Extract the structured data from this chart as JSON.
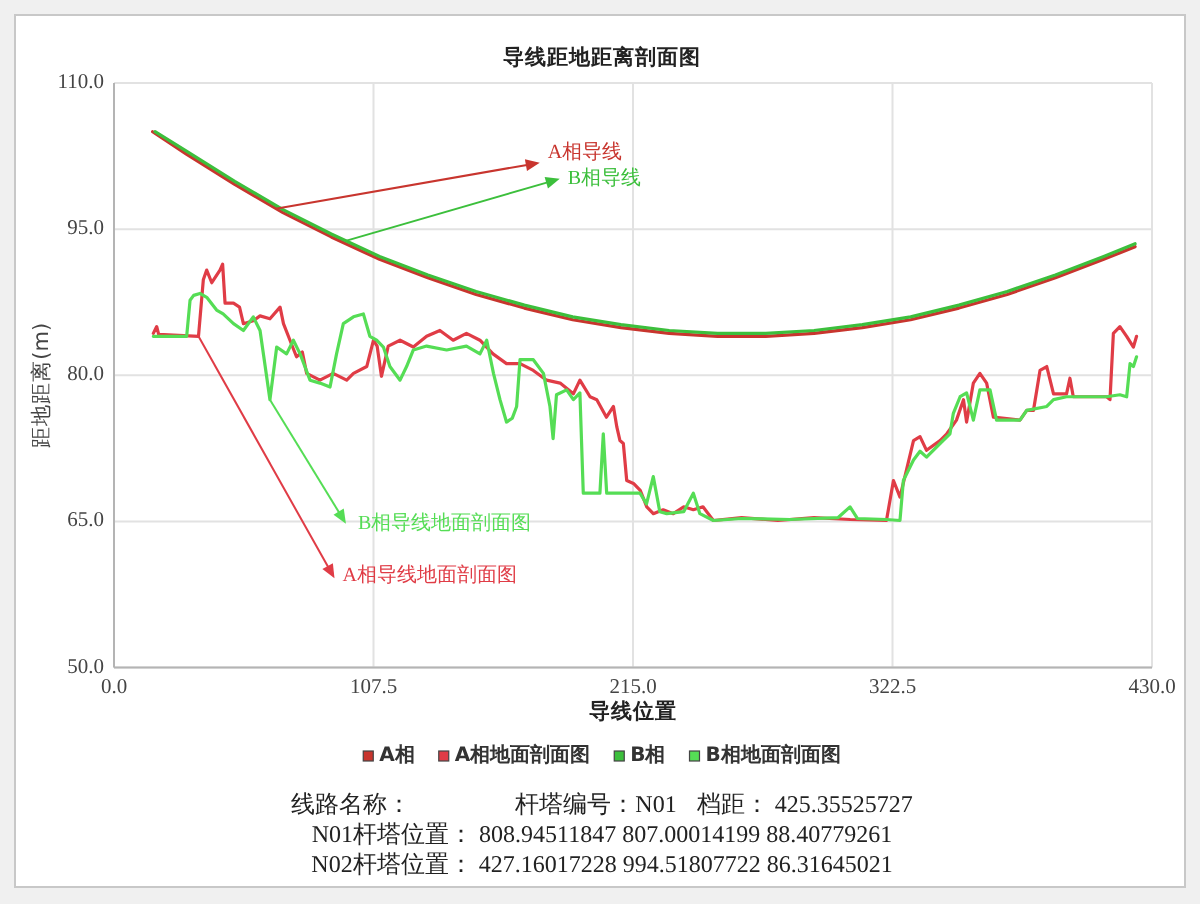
{
  "chart_data": {
    "type": "line",
    "title": "导线距地距离剖面图",
    "xlabel": "导线位置",
    "ylabel": "距地距离(m)",
    "xlim": [
      0,
      430
    ],
    "ylim": [
      50,
      110
    ],
    "xticks": [
      {
        "value": 0,
        "label": "0.0"
      },
      107.5,
      {
        "value": 215,
        "label": "215.0"
      },
      322.5,
      {
        "value": 430,
        "label": "430.0"
      }
    ],
    "yticks": [
      {
        "value": 50,
        "label": "50.0"
      },
      {
        "value": 65,
        "label": "65.0"
      },
      {
        "value": 80,
        "label": "80.0"
      },
      {
        "value": 95,
        "label": "95.0"
      },
      {
        "value": 110,
        "label": "110.0"
      }
    ],
    "grid": true,
    "legend": "bottom",
    "series": [
      {
        "name": "A相",
        "color": "#c8352e",
        "x": [
          16,
          30,
          50,
          70,
          90,
          110,
          130,
          150,
          170,
          190,
          210,
          230,
          250,
          270,
          290,
          310,
          330,
          350,
          370,
          390,
          410,
          423
        ],
        "values": [
          105.0,
          102.7,
          99.6,
          96.7,
          94.2,
          91.9,
          90.0,
          88.3,
          86.9,
          85.7,
          84.9,
          84.3,
          84.0,
          84.0,
          84.3,
          84.9,
          85.7,
          86.9,
          88.3,
          90.0,
          91.9,
          93.2
        ]
      },
      {
        "name": "A相地面剖面图",
        "color": "#e03c46",
        "x": [
          16.3,
          17.7,
          18.5,
          35,
          37,
          38.4,
          40.5,
          43.9,
          45,
          46,
          49.5,
          52,
          53.6,
          57.7,
          60.5,
          64.6,
          68.8,
          70.2,
          72.9,
          75.6,
          78,
          79.8,
          85.3,
          90.8,
          96.4,
          99.2,
          104.7,
          107.5,
          109,
          110.8,
          113.6,
          118.5,
          124,
          129.5,
          135,
          140.5,
          146,
          151.6,
          157,
          162.6,
          168.2,
          173.7,
          179.2,
          184.8,
          190.3,
          193,
          197.2,
          200,
          204,
          206.9,
          208.3,
          209.6,
          211,
          212.4,
          215.2,
          218,
          220.7,
          223.4,
          227.5,
          231.7,
          236,
          240,
          244,
          248.3,
          260,
          275,
          290,
          305,
          320,
          322.9,
          325.6,
          331.2,
          333.9,
          336.6,
          342.2,
          345,
          349,
          351.9,
          353.2,
          356,
          358.7,
          361.5,
          364.3,
          375.3,
          378.1,
          380.9,
          383.6,
          386.4,
          389.2,
          394.6,
          396,
          397.4,
          411.2,
          412.6,
          414,
          416.7,
          419.5,
          422.3,
          423.6
        ],
        "values": [
          84.3,
          85.0,
          84.2,
          84.0,
          89.8,
          90.8,
          89.5,
          90.8,
          91.4,
          87.4,
          87.4,
          87.0,
          85.3,
          85.6,
          86.1,
          85.8,
          87.0,
          85.3,
          83.6,
          81.9,
          82.4,
          80.2,
          79.5,
          80.2,
          79.5,
          80.2,
          80.9,
          83.6,
          83.0,
          79.9,
          83.0,
          83.6,
          82.9,
          84.0,
          84.6,
          83.6,
          84.3,
          83.6,
          82.2,
          81.2,
          81.2,
          80.5,
          79.5,
          79.2,
          78.1,
          79.5,
          77.8,
          77.5,
          75.7,
          76.8,
          74.7,
          73.3,
          73.0,
          69.2,
          68.9,
          68.2,
          66.5,
          65.8,
          66.2,
          65.8,
          66.5,
          66.2,
          66.5,
          65.1,
          65.4,
          65.1,
          65.4,
          65.2,
          65.1,
          69.2,
          67.5,
          73.3,
          73.7,
          72.3,
          73.3,
          74.0,
          75.4,
          77.5,
          75.2,
          79.2,
          80.2,
          79.2,
          75.7,
          75.4,
          76.4,
          76.4,
          80.5,
          80.9,
          78.1,
          78.1,
          79.7,
          77.8,
          77.8,
          77.5,
          84.3,
          85.0,
          84.0,
          82.9,
          84.0
        ]
      },
      {
        "name": "B相",
        "color": "#3cbf3c",
        "x": [
          17,
          30,
          50,
          70,
          90,
          110,
          130,
          150,
          170,
          190,
          210,
          230,
          250,
          270,
          290,
          310,
          330,
          350,
          370,
          390,
          410,
          423
        ],
        "values": [
          105.0,
          103.0,
          99.9,
          97.0,
          94.5,
          92.2,
          90.3,
          88.6,
          87.2,
          86.0,
          85.2,
          84.6,
          84.3,
          84.3,
          84.6,
          85.2,
          86.0,
          87.2,
          88.6,
          90.3,
          92.2,
          93.5
        ]
      },
      {
        "name": "B相地面剖面图",
        "color": "#55dd55",
        "x": [
          16.3,
          30.1,
          31.5,
          33,
          35.6,
          38.4,
          42.5,
          45.2,
          49.5,
          53.6,
          57.7,
          60.5,
          62,
          64.6,
          67.4,
          71.5,
          74.3,
          77.1,
          81.2,
          85.3,
          89.5,
          92.2,
          95,
          99.2,
          103.3,
          106,
          108.8,
          111.6,
          114.3,
          118.5,
          121.2,
          124,
          129.5,
          137.8,
          146,
          151.6,
          154.4,
          157.2,
          159.9,
          162.6,
          165,
          166.8,
          168.2,
          173.7,
          177.9,
          180.6,
          181.9,
          183.3,
          187.5,
          190.3,
          193,
          194.4,
          201.3,
          202.7,
          204.1,
          217.9,
          220.6,
          223.4,
          226.1,
          229,
          236,
          240,
          242.7,
          248.3,
          260,
          280,
          300,
          304.9,
          308,
          320,
          325.6,
          327,
          331.2,
          333.9,
          336.6,
          342.2,
          346.3,
          347.7,
          350.5,
          353.2,
          356,
          358.7,
          362.9,
          365.6,
          375.3,
          378.1,
          386.4,
          389.2,
          394.6,
          411.2,
          416.7,
          419.5,
          420.9,
          422.3,
          423.6
        ],
        "values": [
          84.0,
          84.0,
          87.7,
          88.2,
          88.4,
          88.0,
          86.7,
          86.3,
          85.3,
          84.6,
          86.0,
          84.6,
          82.0,
          77.5,
          82.9,
          82.2,
          83.6,
          82.2,
          79.5,
          79.2,
          78.8,
          82.2,
          85.3,
          86.0,
          86.3,
          84.0,
          83.6,
          82.9,
          80.9,
          79.5,
          80.9,
          82.6,
          83.0,
          82.6,
          83.0,
          82.2,
          83.6,
          80.2,
          77.5,
          75.2,
          75.6,
          76.8,
          81.6,
          81.6,
          80.2,
          76.8,
          73.5,
          78.0,
          78.5,
          77.5,
          78.2,
          67.9,
          67.9,
          74.0,
          67.9,
          67.9,
          66.8,
          69.6,
          66.0,
          65.8,
          66.0,
          67.9,
          65.8,
          65.1,
          65.3,
          65.2,
          65.4,
          66.5,
          65.3,
          65.2,
          65.1,
          69.2,
          71.3,
          72.2,
          71.6,
          73.0,
          74.0,
          76.1,
          77.8,
          78.2,
          75.4,
          78.5,
          78.5,
          75.4,
          75.4,
          76.4,
          76.8,
          77.5,
          77.8,
          77.8,
          78.0,
          77.8,
          81.2,
          80.9,
          81.9
        ]
      }
    ],
    "annotations": [
      {
        "text": "A相导线",
        "x": 67,
        "y": 97.1
      },
      {
        "text": "B相导线",
        "x": 96,
        "y": 93.8
      },
      {
        "text": "B相导线地面剖面图",
        "x": 64.6,
        "y": 77.5
      },
      {
        "text": "A相导线地面剖面图",
        "x": 35,
        "y": 84.0
      },
      "线路名称：",
      "杆塔编号：N01",
      "档距： 425.35525727",
      "N01杆塔位置： 808.94511847 807.00014199 88.40779261",
      "N02杆塔位置： 427.16017228 994.51807722 86.31645021"
    ]
  }
}
